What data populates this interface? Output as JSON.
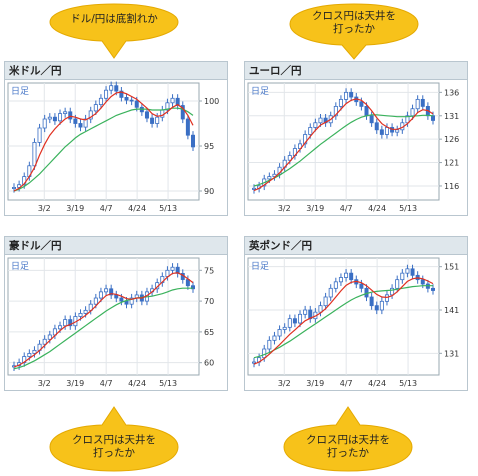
{
  "colors": {
    "candle": "#3a6fc4",
    "ma_fast": "#e03020",
    "ma_slow": "#3ab25c",
    "callout_fill": "#f7c21a",
    "callout_stroke": "#e4a900"
  },
  "callouts": [
    {
      "lines": [
        "ドル/円は底割れか"
      ]
    },
    {
      "lines": [
        "クロス円は天井を",
        "打ったか"
      ]
    },
    {
      "lines": [
        "クロス円は天井を",
        "打ったか"
      ]
    },
    {
      "lines": [
        "クロス円は天井を",
        "打ったか"
      ]
    }
  ],
  "chart_data": [
    {
      "type": "candlestick",
      "title": "米ドル／円",
      "badge": "日足",
      "x_tick_labels": [
        "3/2",
        "3/19",
        "4/7",
        "4/24",
        "5/13"
      ],
      "y_tick_labels": [
        "90",
        "95",
        "100"
      ],
      "ylim": [
        89,
        102
      ],
      "series_close": [
        90.4,
        90.7,
        91.6,
        92.8,
        95.4,
        97.0,
        98.0,
        98.2,
        97.8,
        98.6,
        98.8,
        98.0,
        97.5,
        97.1,
        98.0,
        98.9,
        99.6,
        100.3,
        101.2,
        101.7,
        101.1,
        100.4,
        100.1,
        100.0,
        99.3,
        98.8,
        98.1,
        97.5,
        98.2,
        99.0,
        99.8,
        100.3,
        99.5,
        98.0,
        96.2,
        94.9
      ],
      "ma_fast": [
        90.0,
        90.3,
        90.8,
        91.6,
        92.6,
        94.0,
        95.2,
        96.2,
        96.9,
        97.5,
        98.0,
        98.3,
        98.2,
        98.0,
        97.9,
        98.2,
        98.6,
        99.2,
        99.9,
        100.5,
        100.9,
        101.0,
        100.8,
        100.5,
        100.2,
        99.7,
        99.2,
        98.6,
        98.3,
        98.4,
        98.8,
        99.3,
        99.6,
        99.2,
        98.4,
        97.3
      ],
      "ma_slow": [
        90.0,
        90.2,
        90.5,
        90.9,
        91.4,
        91.9,
        92.5,
        93.1,
        93.7,
        94.3,
        94.9,
        95.4,
        95.9,
        96.3,
        96.6,
        96.9,
        97.2,
        97.5,
        97.8,
        98.1,
        98.4,
        98.6,
        98.8,
        99.0,
        99.1,
        99.1,
        99.1,
        99.0,
        99.0,
        99.0,
        99.1,
        99.2,
        99.2,
        99.1,
        98.8,
        98.4
      ]
    },
    {
      "type": "candlestick",
      "title": "ユーロ／円",
      "badge": "日足",
      "x_tick_labels": [
        "3/2",
        "3/19",
        "4/7",
        "4/24",
        "5/13"
      ],
      "y_tick_labels": [
        "116",
        "121",
        "126",
        "131",
        "136"
      ],
      "ylim": [
        113,
        138
      ],
      "series_close": [
        115.5,
        116.0,
        117.5,
        118.0,
        118.5,
        120.0,
        121.5,
        122.5,
        124.0,
        125.0,
        127.0,
        128.5,
        129.5,
        130.5,
        129.5,
        131.0,
        133.0,
        134.5,
        136.0,
        135.0,
        134.0,
        133.0,
        131.0,
        129.5,
        128.0,
        127.0,
        128.5,
        127.5,
        128.0,
        129.5,
        131.0,
        132.5,
        134.5,
        133.0,
        131.0,
        130.0
      ],
      "ma_fast": [
        115.0,
        115.5,
        116.2,
        117.0,
        117.8,
        118.8,
        120.0,
        121.2,
        122.5,
        123.8,
        125.2,
        126.6,
        127.9,
        129.0,
        129.6,
        130.2,
        131.2,
        132.4,
        133.6,
        134.3,
        134.6,
        134.3,
        133.4,
        132.1,
        130.6,
        129.3,
        128.6,
        128.1,
        128.1,
        128.5,
        129.3,
        130.4,
        131.7,
        132.3,
        132.1,
        131.4
      ],
      "ma_slow": [
        116.0,
        116.3,
        116.7,
        117.2,
        117.7,
        118.3,
        119.0,
        119.7,
        120.5,
        121.3,
        122.2,
        123.1,
        124.0,
        124.9,
        125.7,
        126.5,
        127.3,
        128.1,
        128.9,
        129.6,
        130.2,
        130.7,
        131.0,
        131.2,
        131.2,
        131.1,
        131.0,
        130.9,
        130.8,
        130.8,
        130.8,
        130.9,
        131.0,
        131.1,
        131.1,
        131.0
      ]
    },
    {
      "type": "candlestick",
      "title": "豪ドル／円",
      "badge": "日足",
      "x_tick_labels": [
        "3/2",
        "3/19",
        "4/7",
        "4/24",
        "5/13"
      ],
      "y_tick_labels": [
        "60",
        "65",
        "70",
        "75"
      ],
      "ylim": [
        58,
        77
      ],
      "series_close": [
        59.5,
        60.0,
        61.0,
        61.5,
        62.0,
        63.0,
        63.8,
        64.5,
        65.5,
        66.0,
        67.0,
        66.0,
        67.5,
        68.0,
        68.5,
        69.5,
        70.5,
        71.5,
        72.0,
        71.0,
        70.5,
        70.0,
        69.5,
        70.5,
        71.0,
        70.0,
        71.5,
        72.0,
        73.0,
        74.0,
        75.0,
        75.5,
        74.5,
        73.5,
        72.5,
        72.0
      ],
      "ma_fast": [
        59.3,
        59.6,
        60.1,
        60.7,
        61.3,
        62.0,
        62.8,
        63.6,
        64.4,
        65.2,
        65.9,
        66.2,
        66.6,
        67.1,
        67.7,
        68.4,
        69.2,
        70.1,
        70.9,
        71.2,
        71.1,
        70.8,
        70.4,
        70.3,
        70.5,
        70.5,
        70.9,
        71.5,
        72.3,
        73.1,
        73.9,
        74.5,
        74.6,
        74.2,
        73.6,
        73.0
      ],
      "ma_slow": [
        59.0,
        59.2,
        59.5,
        59.9,
        60.3,
        60.8,
        61.3,
        61.8,
        62.4,
        63.0,
        63.6,
        64.2,
        64.8,
        65.4,
        66.0,
        66.6,
        67.2,
        67.8,
        68.4,
        68.9,
        69.4,
        69.8,
        70.1,
        70.3,
        70.5,
        70.6,
        70.7,
        70.8,
        71.0,
        71.2,
        71.5,
        71.8,
        72.0,
        72.1,
        72.1,
        72.1
      ]
    },
    {
      "type": "candlestick",
      "title": "英ポンド／円",
      "badge": "日足",
      "x_tick_labels": [
        "3/2",
        "3/19",
        "4/7",
        "4/24",
        "5/13"
      ],
      "y_tick_labels": [
        "131",
        "141",
        "151"
      ],
      "ylim": [
        126,
        153
      ],
      "series_close": [
        129.0,
        130.0,
        132.0,
        134.0,
        135.0,
        136.5,
        137.0,
        139.0,
        138.0,
        140.0,
        141.0,
        139.0,
        140.5,
        142.0,
        144.0,
        146.0,
        147.5,
        148.5,
        149.5,
        148.0,
        147.0,
        146.0,
        144.0,
        142.0,
        141.0,
        143.0,
        144.5,
        146.0,
        148.0,
        149.5,
        150.5,
        149.0,
        148.0,
        147.0,
        146.0,
        145.5
      ],
      "ma_fast": [
        128.5,
        129.0,
        129.8,
        130.8,
        131.9,
        133.0,
        134.2,
        135.4,
        136.4,
        137.5,
        138.5,
        139.1,
        139.6,
        140.3,
        141.3,
        142.6,
        144.0,
        145.4,
        146.7,
        147.4,
        147.6,
        147.3,
        146.6,
        145.6,
        144.6,
        144.0,
        143.9,
        144.3,
        145.2,
        146.4,
        147.6,
        148.2,
        148.4,
        148.2,
        147.7,
        147.1
      ],
      "ma_slow": [
        130.0,
        130.3,
        130.7,
        131.2,
        131.8,
        132.4,
        133.1,
        133.8,
        134.6,
        135.4,
        136.2,
        137.0,
        137.8,
        138.6,
        139.4,
        140.2,
        141.0,
        141.8,
        142.6,
        143.3,
        143.9,
        144.4,
        144.8,
        145.1,
        145.3,
        145.4,
        145.5,
        145.6,
        145.8,
        146.0,
        146.2,
        146.4,
        146.5,
        146.6,
        146.6,
        146.6
      ]
    }
  ]
}
